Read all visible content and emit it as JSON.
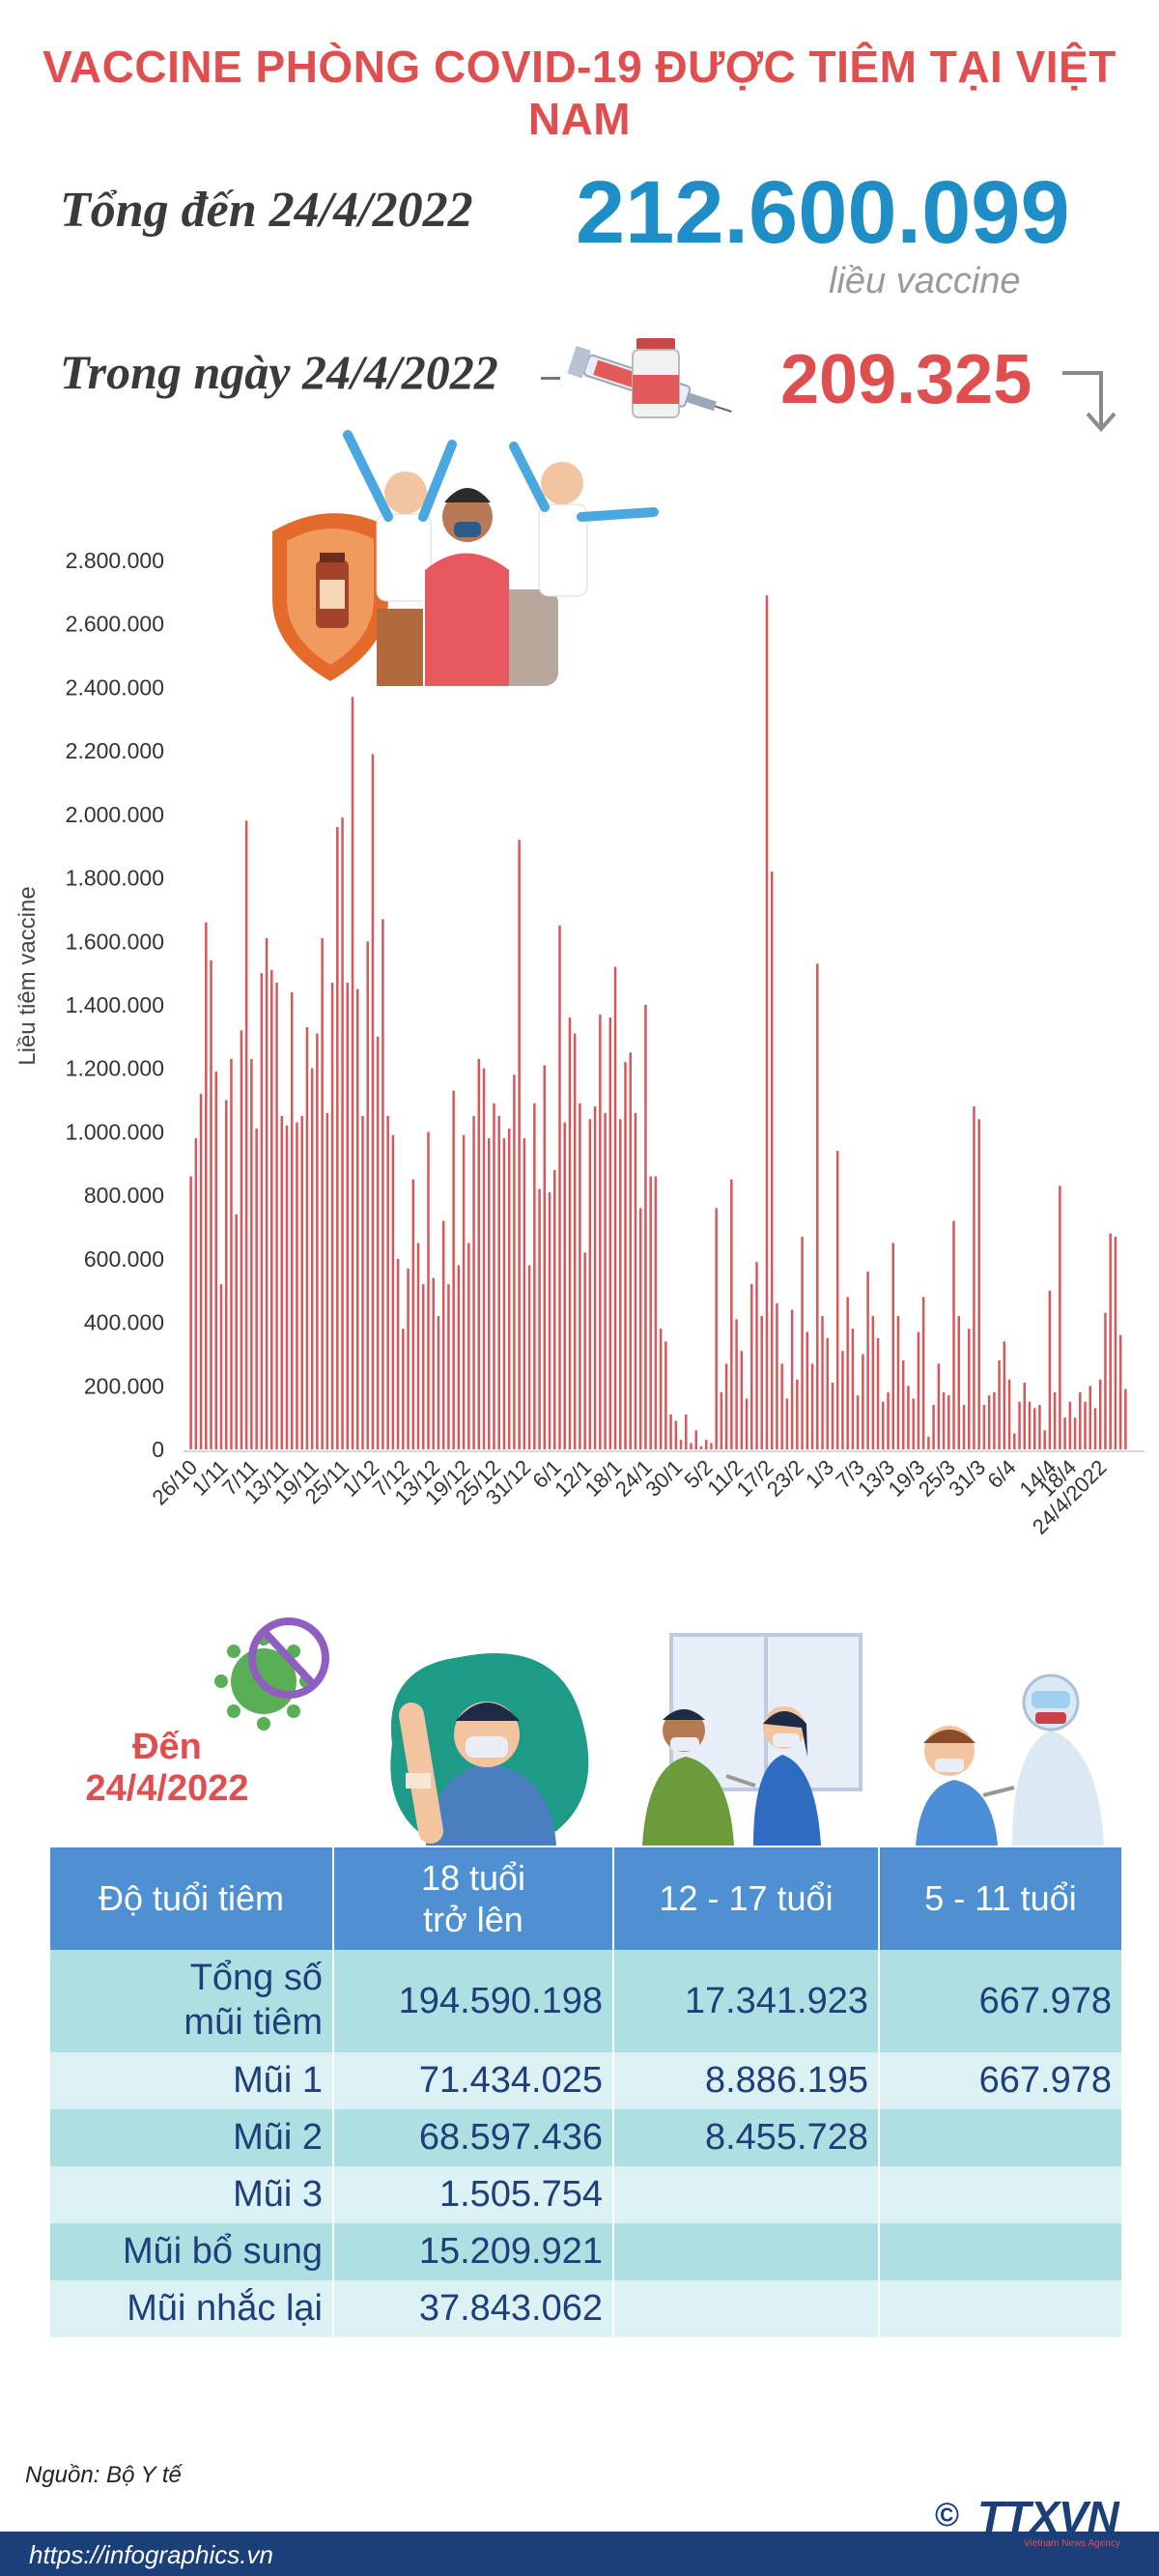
{
  "header": {
    "title": "VACCINE PHÒNG COVID-19 ĐƯỢC TIÊM TẠI VIỆT NAM",
    "total_label": "Tổng đến 24/4/2022",
    "total_value": "212.600.099",
    "total_unit": "liều vaccine",
    "daily_label": "Trong ngày 24/4/2022",
    "daily_value": "209.325"
  },
  "colors": {
    "title_red": "#e04f4f",
    "value_blue": "#1f8ec7",
    "bar_red": "#d9575a",
    "table_header": "#4e90d2",
    "footer_navy": "#1b3f78"
  },
  "chart_data": {
    "type": "bar",
    "ylabel": "Liều tiêm vaccine",
    "ylim": [
      0,
      2800000
    ],
    "yticks": [
      0,
      200000,
      400000,
      600000,
      800000,
      1000000,
      1200000,
      1400000,
      1600000,
      1800000,
      2000000,
      2200000,
      2400000,
      2600000,
      2800000
    ],
    "ytick_labels": [
      "0",
      "200.000",
      "400.000",
      "600.000",
      "800.000",
      "1.000.000",
      "1.200.000",
      "1.400.000",
      "1.600.000",
      "1.800.000",
      "2.000.000",
      "2.200.000",
      "2.400.000",
      "2.600.000",
      "2.800.000"
    ],
    "xtick_labels": [
      "26/10",
      "1/11",
      "7/11",
      "13/11",
      "19/11",
      "25/11",
      "1/12",
      "7/12",
      "13/12",
      "19/12",
      "25/12",
      "31/12",
      "6/1",
      "12/1",
      "18/1",
      "24/1",
      "30/1",
      "5/2",
      "11/2",
      "17/2",
      "23/2",
      "1/3",
      "7/3",
      "13/3",
      "19/3",
      "25/3",
      "31/3",
      "6/4",
      "14/4",
      "18/4",
      "24/4/2022"
    ],
    "xtick_index": [
      0,
      6,
      12,
      18,
      24,
      30,
      36,
      42,
      48,
      54,
      60,
      66,
      72,
      78,
      84,
      90,
      96,
      102,
      108,
      114,
      120,
      126,
      132,
      138,
      144,
      150,
      156,
      162,
      170,
      174,
      180
    ],
    "grid": false,
    "values": [
      860000,
      980000,
      1120000,
      1660000,
      1540000,
      1190000,
      520000,
      1100000,
      1230000,
      740000,
      1320000,
      1980000,
      1230000,
      1010000,
      1500000,
      1610000,
      1510000,
      1470000,
      1050000,
      1020000,
      1440000,
      1030000,
      1050000,
      1330000,
      1200000,
      1310000,
      1610000,
      1060000,
      1470000,
      1960000,
      1990000,
      1470000,
      2370000,
      1450000,
      1050000,
      1600000,
      2190000,
      1300000,
      1670000,
      1050000,
      990000,
      600000,
      380000,
      570000,
      850000,
      650000,
      520000,
      1000000,
      540000,
      420000,
      720000,
      520000,
      1130000,
      580000,
      990000,
      650000,
      1050000,
      1230000,
      1200000,
      980000,
      1090000,
      1050000,
      980000,
      1010000,
      1180000,
      1920000,
      980000,
      580000,
      1090000,
      820000,
      1210000,
      810000,
      880000,
      1650000,
      1030000,
      1360000,
      1310000,
      1090000,
      620000,
      1040000,
      1080000,
      1370000,
      1060000,
      1360000,
      1520000,
      1040000,
      1220000,
      1250000,
      1060000,
      760000,
      1400000,
      860000,
      860000,
      380000,
      340000,
      110000,
      90000,
      30000,
      110000,
      20000,
      60000,
      10000,
      30000,
      20000,
      760000,
      180000,
      270000,
      850000,
      410000,
      310000,
      160000,
      520000,
      590000,
      420000,
      2690000,
      1820000,
      460000,
      270000,
      160000,
      440000,
      220000,
      670000,
      370000,
      270000,
      1530000,
      420000,
      350000,
      210000,
      940000,
      310000,
      480000,
      380000,
      170000,
      300000,
      560000,
      420000,
      350000,
      150000,
      180000,
      650000,
      420000,
      280000,
      200000,
      160000,
      370000,
      480000,
      40000,
      140000,
      270000,
      180000,
      170000,
      720000,
      420000,
      140000,
      380000,
      1080000,
      1040000,
      140000,
      170000,
      180000,
      280000,
      340000,
      220000,
      50000,
      150000,
      210000,
      150000,
      130000,
      140000,
      60000,
      500000,
      180000,
      830000,
      100000,
      150000,
      100000,
      180000,
      150000,
      200000,
      130000,
      220000,
      430000,
      680000,
      670000,
      360000,
      190000
    ]
  },
  "age_section": {
    "date_label": "Đến\n24/4/2022",
    "headers": [
      "Độ tuổi tiêm",
      "18 tuổi\ntrở lên",
      "12 - 17 tuổi",
      "5 - 11 tuổi"
    ],
    "rows": [
      {
        "label": "Tổng số\nmũi tiêm",
        "a": "194.590.198",
        "b": "17.341.923",
        "c": "667.978"
      },
      {
        "label": "Mũi 1",
        "a": "71.434.025",
        "b": "8.886.195",
        "c": "667.978"
      },
      {
        "label": "Mũi 2",
        "a": "68.597.436",
        "b": "8.455.728",
        "c": ""
      },
      {
        "label": "Mũi 3",
        "a": "1.505.754",
        "b": "",
        "c": ""
      },
      {
        "label": "Mũi bổ sung",
        "a": "15.209.921",
        "b": "",
        "c": ""
      },
      {
        "label": "Mũi nhắc lại",
        "a": "37.843.062",
        "b": "",
        "c": ""
      }
    ]
  },
  "footer": {
    "source": "Nguồn: Bộ Y tế",
    "url": "https://infographics.vn",
    "copyright": "©",
    "logo_text": "TTXVN",
    "logo_subtext": "Vietnam News Agency"
  }
}
